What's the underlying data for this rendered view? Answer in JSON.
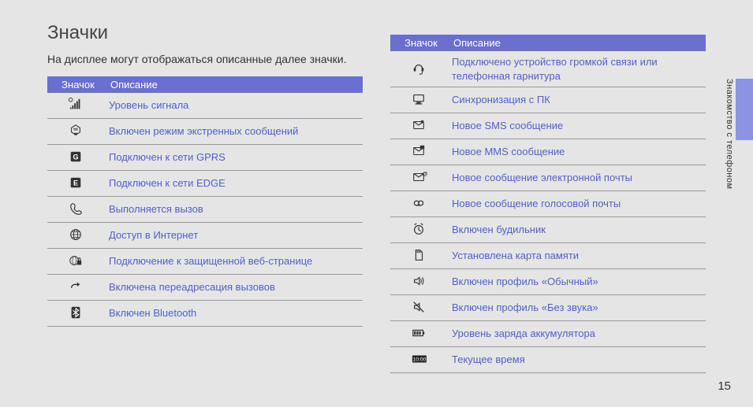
{
  "title": "Значки",
  "intro": "На дисплее могут отображаться описанные далее значки.",
  "header_icon": "Значок",
  "header_desc": "Описание",
  "side_label": "Знакомство с телефоном",
  "page_number": "15",
  "colors": {
    "header_bg": "#6a6fcf",
    "link": "#5060c8",
    "side_tab": "#8a94e0",
    "page_bg": "#e5e5e5"
  },
  "left_rows": [
    {
      "icon": "signal",
      "desc": "Уровень сигнала"
    },
    {
      "icon": "sos",
      "desc": "Включен режим экстренных сообщений"
    },
    {
      "icon": "gprs",
      "desc": "Подключен к сети GPRS"
    },
    {
      "icon": "edge",
      "desc": "Подключен к сети EDGE"
    },
    {
      "icon": "call",
      "desc": "Выполняется вызов"
    },
    {
      "icon": "globe",
      "desc": "Доступ в Интернет"
    },
    {
      "icon": "secure",
      "desc": "Подключение к защищенной веб-странице"
    },
    {
      "icon": "forward",
      "desc": "Включена переадресация вызовов"
    },
    {
      "icon": "bt",
      "desc": "Включен Bluetooth"
    }
  ],
  "right_rows": [
    {
      "icon": "headset",
      "desc": "Подключено устройство громкой связи или телефонная гарнитура"
    },
    {
      "icon": "pc",
      "desc": "Синхронизация с ПК"
    },
    {
      "icon": "sms",
      "desc": "Новое SMS сообщение"
    },
    {
      "icon": "mms",
      "desc": "Новое MMS сообщение"
    },
    {
      "icon": "email",
      "desc": "Новое сообщение электронной почты"
    },
    {
      "icon": "voicemail",
      "desc": "Новое сообщение голосовой почты"
    },
    {
      "icon": "alarm",
      "desc": "Включен будильник"
    },
    {
      "icon": "sd",
      "desc": "Установлена карта памяти"
    },
    {
      "icon": "sound",
      "desc": "Включен профиль «Обычный»"
    },
    {
      "icon": "mute",
      "desc": "Включен профиль «Без звука»"
    },
    {
      "icon": "battery",
      "desc": "Уровень заряда аккумулятора"
    },
    {
      "icon": "clock",
      "desc": "Текущее время"
    }
  ]
}
